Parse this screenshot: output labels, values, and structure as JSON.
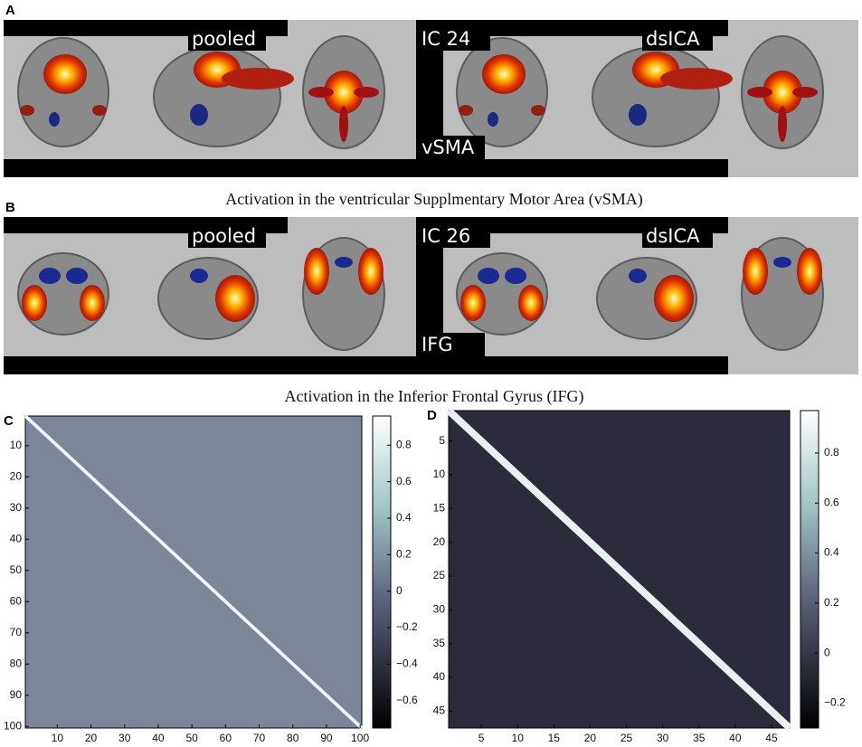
{
  "panels": [
    {
      "label": "A",
      "tags": {
        "left": "pooled",
        "center_top": "IC 24",
        "right": "dsICA",
        "center_bottom": "vSMA"
      },
      "caption": "Activation in the ventricular Supplmentary Motor Area (vSMA)"
    },
    {
      "label": "B",
      "tags": {
        "left": "pooled",
        "center_top": "IC 26",
        "right": "dsICA",
        "center_bottom": "IFG"
      },
      "caption": "Activation in the Inferior Frontal Gyrus (IFG)"
    }
  ],
  "matrices": [
    {
      "label": "C",
      "size": 100,
      "ticks": [
        10,
        20,
        30,
        40,
        50,
        60,
        70,
        80,
        90,
        100
      ],
      "clim": [
        -0.75,
        0.96
      ],
      "colorbar_ticks": [
        0.8,
        0.6,
        0.4,
        0.2,
        0,
        {
          "value": -0.2,
          "label": "−0.2"
        },
        {
          "value": -0.4,
          "label": "−0.4"
        },
        {
          "value": -0.6,
          "label": "−0.6"
        }
      ]
    },
    {
      "label": "D",
      "size": 47,
      "ticks": [
        5,
        10,
        15,
        20,
        25,
        30,
        35,
        40,
        45
      ],
      "clim": [
        -0.3,
        0.97
      ],
      "colorbar_ticks": [
        0.8,
        0.6,
        0.4,
        0.2,
        0,
        {
          "value": -0.2,
          "label": "−0.2"
        }
      ]
    }
  ]
}
